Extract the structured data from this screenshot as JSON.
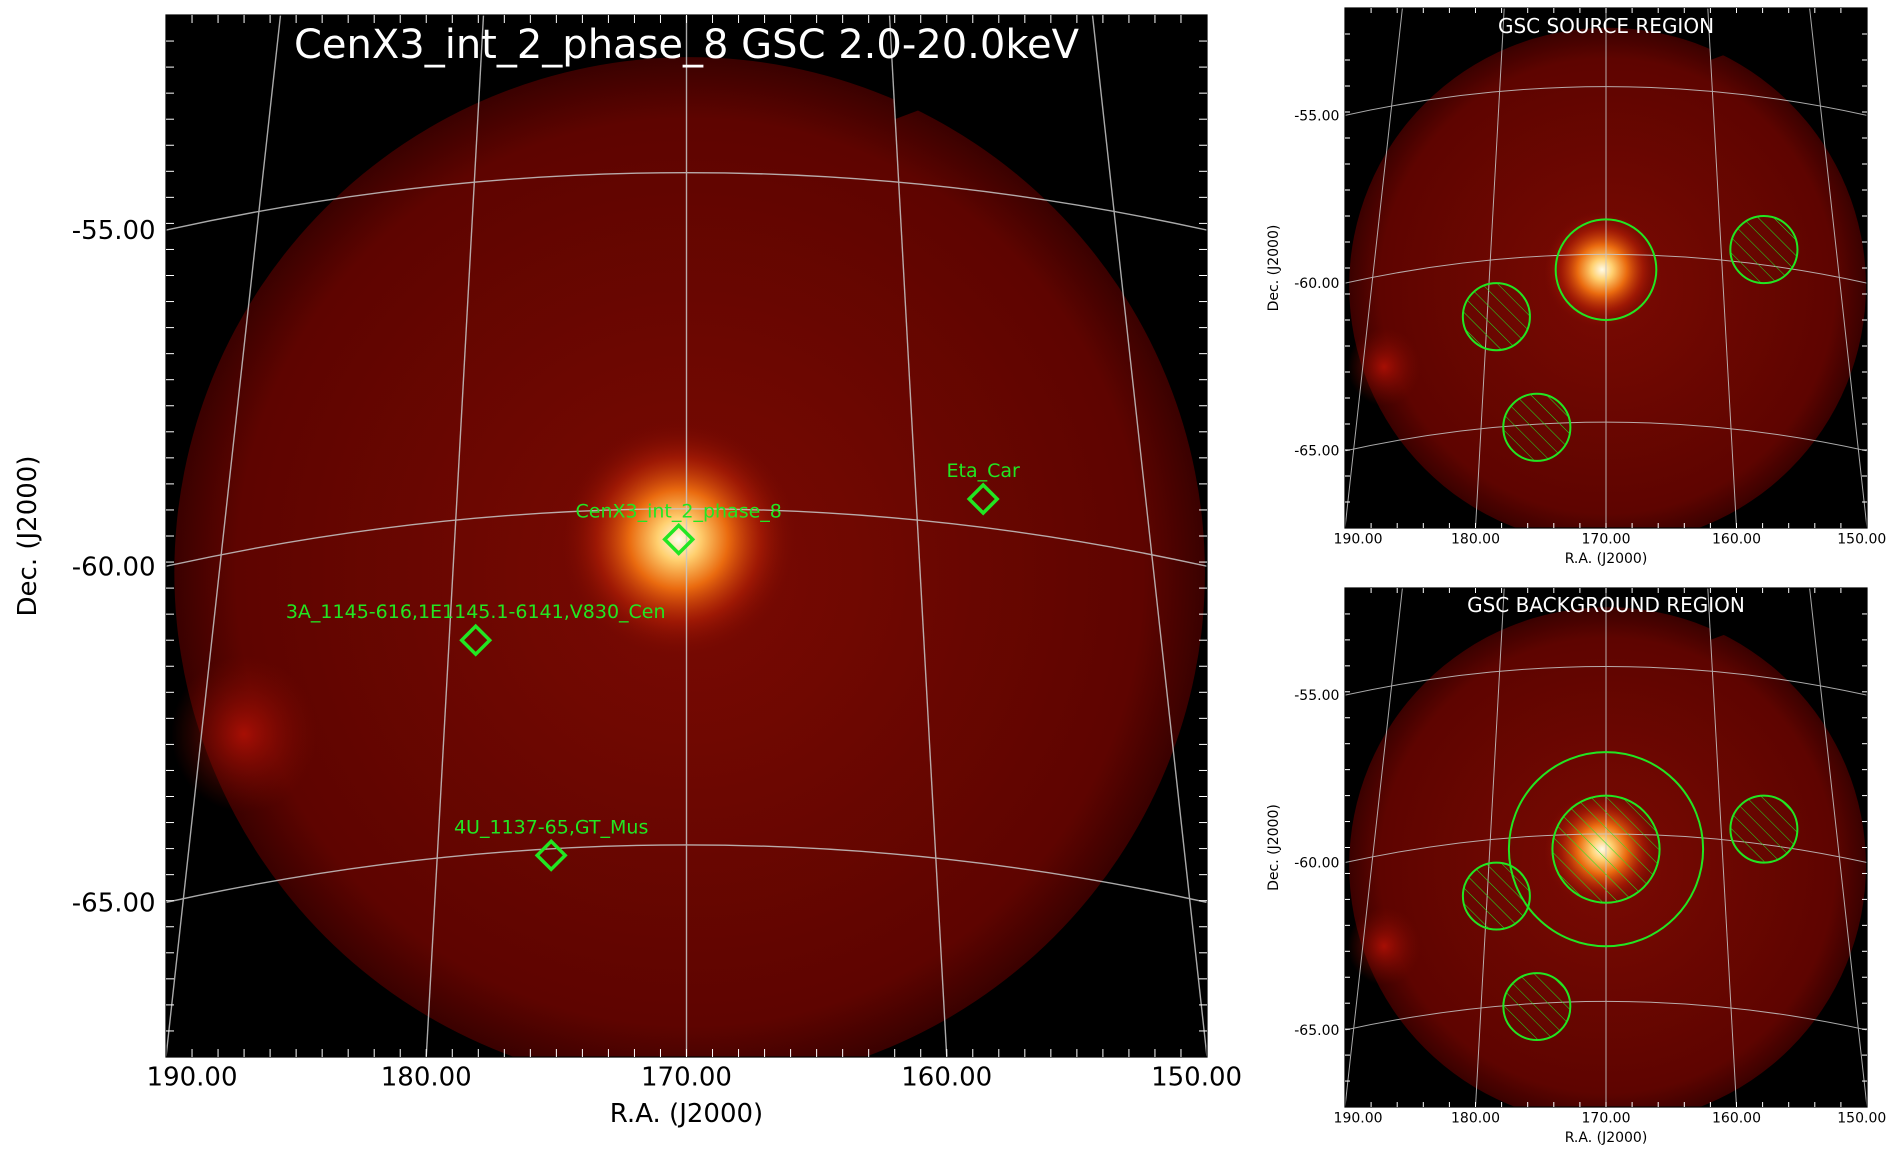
{
  "colors": {
    "sky_dark": "#5e0400",
    "sky_mid": "#7a0a02",
    "sky_edge": "#3a0100",
    "background": "#000000",
    "grid": "#c8c8c8",
    "region": "#22e622",
    "label": "#22e622",
    "frame": "#000000",
    "inset_title": "#ffffff"
  },
  "chart_data": [
    {
      "type": "heatmap",
      "title": "CenX3_int_2_phase_8 GSC 2.0-20.0keV",
      "xlabel": "R.A. (J2000)",
      "ylabel": "Dec. (J2000)",
      "x_ticks": [
        "190.00",
        "180.00",
        "170.00",
        "160.00",
        "150.00"
      ],
      "y_ticks": [
        "-55.00",
        "-60.00",
        "-65.00"
      ],
      "xlim": [
        190,
        150
      ],
      "ylim": [
        -67.3,
        -51.8
      ],
      "grid": true,
      "sources": [
        {
          "label": "CenX3_int_2_phase_8",
          "ra": 170.3,
          "dec": -59.6,
          "bright": true
        },
        {
          "label": "Eta_Car",
          "ra": 158.6,
          "dec": -59.0
        },
        {
          "label": "3A_1145-616,1E1145.1-6141,V830_Cen",
          "ra": 178.1,
          "dec": -61.1
        },
        {
          "label": "4U_1137-65,GT_Mus",
          "ra": 175.2,
          "dec": -64.3
        }
      ]
    },
    {
      "type": "heatmap",
      "title": "GSC SOURCE REGION",
      "xlabel": "R.A. (J2000)",
      "ylabel": "Dec. (J2000)",
      "x_ticks": [
        "190.00",
        "180.00",
        "170.00",
        "160.00",
        "150.00"
      ],
      "y_ticks": [
        "-55.00",
        "-60.00",
        "-65.00"
      ],
      "regions": [
        {
          "kind": "source_circle",
          "ra": 170.0,
          "dec": -59.6,
          "radius_deg": 1.5
        },
        {
          "kind": "excluded_circle",
          "ra": 178.4,
          "dec": -61.0,
          "radius_deg": 1.0
        },
        {
          "kind": "excluded_circle",
          "ra": 175.3,
          "dec": -64.3,
          "radius_deg": 1.0
        },
        {
          "kind": "excluded_circle",
          "ra": 157.9,
          "dec": -59.0,
          "radius_deg": 1.0
        }
      ]
    },
    {
      "type": "heatmap",
      "title": "GSC BACKGROUND REGION",
      "xlabel": "R.A. (J2000)",
      "ylabel": "Dec. (J2000)",
      "x_ticks": [
        "190.00",
        "180.00",
        "170.00",
        "160.00",
        "150.00"
      ],
      "y_ticks": [
        "-55.00",
        "-60.00",
        "-65.00"
      ],
      "regions": [
        {
          "kind": "background_outer",
          "ra": 170.0,
          "dec": -59.6,
          "radius_deg": 2.9
        },
        {
          "kind": "excluded_circle",
          "ra": 170.0,
          "dec": -59.6,
          "radius_deg": 1.6
        },
        {
          "kind": "excluded_circle",
          "ra": 178.4,
          "dec": -61.0,
          "radius_deg": 1.0
        },
        {
          "kind": "excluded_circle",
          "ra": 175.3,
          "dec": -64.3,
          "radius_deg": 1.0
        },
        {
          "kind": "excluded_circle",
          "ra": 157.9,
          "dec": -59.0,
          "radius_deg": 1.0
        }
      ]
    }
  ]
}
